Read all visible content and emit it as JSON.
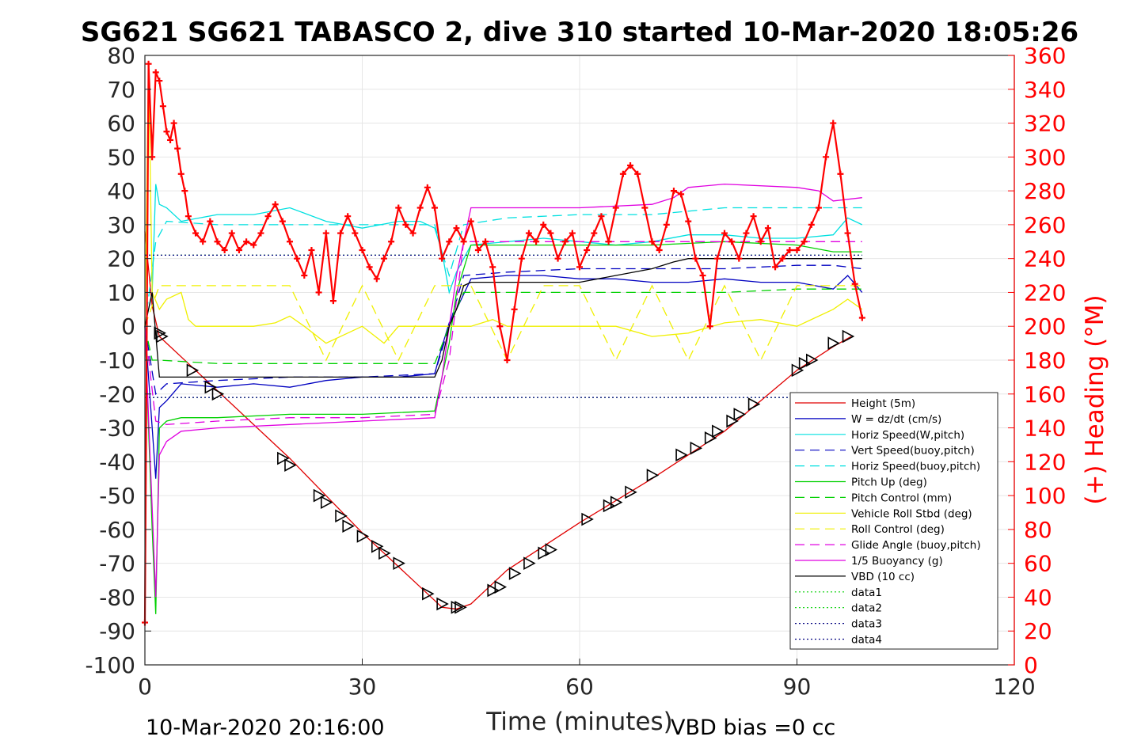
{
  "chart_data": {
    "type": "line",
    "title": "SG621 SG621 TABASCO 2, dive 310 started 10-Mar-2020 18:05:26",
    "xlabel": "Time (minutes)",
    "ylabel_right": "(+) Heading (°M)",
    "xlim": [
      0,
      120
    ],
    "ylim_left": [
      -100,
      80
    ],
    "ylim_right": [
      0,
      360
    ],
    "xticks": [
      "0",
      "30",
      "60",
      "90",
      "120"
    ],
    "yticks_left": [
      "80",
      "70",
      "60",
      "50",
      "40",
      "30",
      "20",
      "10",
      "0",
      "-10",
      "-20",
      "-30",
      "-40",
      "-50",
      "-60",
      "-70",
      "-80",
      "-90",
      "-100"
    ],
    "yticks_right": [
      "360",
      "340",
      "320",
      "300",
      "280",
      "260",
      "240",
      "220",
      "200",
      "180",
      "160",
      "140",
      "120",
      "100",
      "80",
      "60",
      "40",
      "20",
      "0"
    ],
    "grid": true,
    "legend_position": "lower-right",
    "footer_left": "10-Mar-2020 20:16:00",
    "footer_right": "VBD bias =0 cc",
    "colors": {
      "red": "#e00000",
      "blue": "#0000c0",
      "cyan": "#00e0e0",
      "green": "#00d000",
      "yellow": "#f0f000",
      "magenta": "#e000e0",
      "black": "#000000",
      "heading": "#ff0000"
    },
    "legend": [
      {
        "label": "Height (5m)",
        "color": "#e00000",
        "dash": "solid"
      },
      {
        "label": "W = dz/dt (cm/s)",
        "color": "#0000c0",
        "dash": "solid"
      },
      {
        "label": "Horiz Speed(W,pitch)",
        "color": "#00e0e0",
        "dash": "solid"
      },
      {
        "label": "Vert Speed(buoy,pitch)",
        "color": "#0000c0",
        "dash": "dashed"
      },
      {
        "label": "Horiz Speed(buoy,pitch)",
        "color": "#00e0e0",
        "dash": "dashed"
      },
      {
        "label": "Pitch Up (deg)",
        "color": "#00d000",
        "dash": "solid"
      },
      {
        "label": "Pitch Control (mm)",
        "color": "#00d000",
        "dash": "dashed"
      },
      {
        "label": "Vehicle Roll Stbd (deg)",
        "color": "#f0f000",
        "dash": "solid"
      },
      {
        "label": "Roll Control (deg)",
        "color": "#f0f000",
        "dash": "dashed"
      },
      {
        "label": "Glide Angle (buoy,pitch)",
        "color": "#e000e0",
        "dash": "dashed"
      },
      {
        "label": "1/5 Buoyancy (g)",
        "color": "#e000e0",
        "dash": "solid"
      },
      {
        "label": "VBD (10 cc)",
        "color": "#000000",
        "dash": "solid"
      },
      {
        "label": "data1",
        "color": "#00d000",
        "dash": "dotted"
      },
      {
        "label": "data2",
        "color": "#00d000",
        "dash": "dotted"
      },
      {
        "label": "data3",
        "color": "#000080",
        "dash": "dotted"
      },
      {
        "label": "data4",
        "color": "#000080",
        "dash": "dotted"
      }
    ],
    "series": [
      {
        "name": "Height (5m)",
        "axis": "left",
        "color": "#e00000",
        "dash": "solid",
        "x": [
          0,
          1,
          2,
          6,
          10,
          20,
          30,
          40,
          41,
          43,
          45,
          50,
          60,
          70,
          80,
          90,
          95,
          97.5
        ],
        "y": [
          28,
          6,
          -3,
          -11,
          -19,
          -39,
          -61,
          -81,
          -83,
          -83.5,
          -82,
          -72,
          -58,
          -45,
          -31,
          -13,
          -6,
          -3
        ]
      },
      {
        "name": "W = dz/dt (cm/s)",
        "axis": "left",
        "color": "#0000c0",
        "dash": "solid",
        "x": [
          0,
          1,
          1.5,
          2,
          3,
          5,
          10,
          15,
          20,
          25,
          30,
          35,
          40,
          41,
          42,
          43,
          45,
          50,
          55,
          60,
          65,
          70,
          75,
          80,
          85,
          90,
          95,
          97,
          99
        ],
        "y": [
          0,
          -30,
          -45,
          -24,
          -22,
          -17,
          -18,
          -17,
          -18,
          -16,
          -15,
          -15,
          -14,
          -6,
          1,
          5,
          14,
          15,
          15,
          14,
          14,
          13,
          13,
          14,
          13,
          13,
          11,
          15,
          10
        ]
      },
      {
        "name": "Horiz Speed(W,pitch)",
        "axis": "left",
        "color": "#00e0e0",
        "dash": "solid",
        "x": [
          0,
          1,
          1.5,
          2,
          3,
          5,
          10,
          15,
          20,
          25,
          30,
          35,
          38,
          40,
          41,
          42,
          43,
          45,
          50,
          55,
          60,
          65,
          70,
          75,
          80,
          85,
          90,
          95,
          97,
          99
        ],
        "y": [
          0,
          10,
          42,
          36,
          35,
          31,
          33,
          33,
          35,
          31,
          29,
          31,
          31,
          29,
          22,
          10,
          16,
          24,
          25,
          26,
          25,
          24,
          25,
          27,
          27,
          26,
          26,
          27,
          32,
          30
        ]
      },
      {
        "name": "Vert Speed(buoy,pitch)",
        "axis": "left",
        "color": "#0000c0",
        "dash": "dashed",
        "x": [
          0,
          1.5,
          3,
          10,
          20,
          30,
          40,
          42,
          44,
          50,
          60,
          70,
          80,
          90,
          95,
          99
        ],
        "y": [
          0,
          -20,
          -17,
          -16,
          -15,
          -15,
          -14,
          0,
          15,
          16,
          17,
          17,
          17,
          18,
          18,
          17
        ]
      },
      {
        "name": "Horiz Speed(buoy,pitch)",
        "axis": "left",
        "color": "#00e0e0",
        "dash": "dashed",
        "x": [
          0,
          1.5,
          3,
          10,
          20,
          30,
          40,
          41,
          42,
          44,
          50,
          60,
          70,
          80,
          90,
          95,
          99
        ],
        "y": [
          0,
          25,
          31,
          30,
          30,
          30,
          30,
          22,
          15,
          30,
          32,
          33,
          33,
          35,
          35,
          35,
          35
        ]
      },
      {
        "name": "Pitch Up (deg)",
        "axis": "left",
        "color": "#00d000",
        "dash": "solid",
        "x": [
          0,
          1,
          1.5,
          2,
          3,
          5,
          10,
          20,
          30,
          40,
          41,
          42,
          43,
          45,
          50,
          60,
          70,
          80,
          90,
          95,
          99
        ],
        "y": [
          0,
          -60,
          -85,
          -30,
          -28,
          -27,
          -27,
          -26,
          -26,
          -25,
          -15,
          -5,
          10,
          24,
          24,
          24,
          24,
          25,
          24,
          22,
          22
        ]
      },
      {
        "name": "Pitch Control (mm)",
        "axis": "left",
        "color": "#00d000",
        "dash": "dashed",
        "x": [
          0,
          1,
          2,
          10,
          20,
          30,
          40,
          42,
          44,
          50,
          60,
          70,
          80,
          90,
          95,
          99
        ],
        "y": [
          0,
          -10,
          -10,
          -11,
          -11,
          -11,
          -11,
          0,
          10,
          10,
          10,
          10,
          10,
          11,
          11,
          11
        ]
      },
      {
        "name": "Vehicle Roll Stbd (deg)",
        "axis": "left",
        "color": "#f0f000",
        "dash": "solid",
        "x": [
          0,
          0.5,
          1,
          2,
          3,
          5,
          6,
          7,
          10,
          15,
          18,
          20,
          22,
          25,
          30,
          33,
          35,
          40,
          45,
          48,
          50,
          55,
          60,
          65,
          70,
          75,
          80,
          85,
          90,
          95,
          97,
          99
        ],
        "y": [
          0,
          78,
          10,
          5,
          8,
          10,
          2,
          0,
          0,
          0,
          1,
          3,
          0,
          -5,
          0,
          -5,
          0,
          0,
          0,
          2,
          0,
          0,
          0,
          0,
          -3,
          -2,
          1,
          2,
          0,
          5,
          8,
          5
        ]
      },
      {
        "name": "Roll Control (deg)",
        "axis": "left",
        "color": "#f0f000",
        "dash": "dashed",
        "x": [
          0,
          2,
          5,
          10,
          20,
          25,
          30,
          35,
          40,
          45,
          50,
          55,
          60,
          65,
          70,
          75,
          80,
          85,
          90,
          95,
          99
        ],
        "y": [
          0,
          12,
          12,
          12,
          12,
          -10,
          12,
          -10,
          12,
          12,
          -10,
          12,
          12,
          -10,
          12,
          -10,
          12,
          -10,
          12,
          12,
          12
        ]
      },
      {
        "name": "Glide Angle (buoy,pitch)",
        "axis": "left",
        "color": "#e000e0",
        "dash": "dashed",
        "x": [
          0,
          1.5,
          3,
          10,
          20,
          30,
          40,
          42,
          44,
          50,
          60,
          70,
          80,
          90,
          95,
          99
        ],
        "y": [
          0,
          -28,
          -29,
          -28,
          -27,
          -27,
          -26,
          -10,
          25,
          25,
          25,
          25,
          25,
          25,
          25,
          25
        ]
      },
      {
        "name": "1/5 Buoyancy (g)",
        "axis": "left",
        "color": "#e000e0",
        "dash": "solid",
        "x": [
          0,
          1.5,
          2,
          3,
          5,
          10,
          20,
          30,
          40,
          41,
          43,
          45,
          50,
          60,
          70,
          73,
          75,
          80,
          90,
          93,
          95,
          99
        ],
        "y": [
          0,
          -80,
          -38,
          -34,
          -31,
          -30,
          -29,
          -28,
          -27,
          -15,
          15,
          35,
          35,
          35,
          36,
          38,
          41,
          42,
          41,
          40,
          37,
          38
        ]
      },
      {
        "name": "VBD (10 cc)",
        "axis": "left",
        "color": "#000000",
        "dash": "solid",
        "x": [
          0,
          1,
          2,
          10,
          20,
          30,
          40,
          41,
          42,
          43,
          44,
          45,
          50,
          60,
          70,
          73,
          75,
          80,
          90,
          95,
          99
        ],
        "y": [
          0,
          10,
          -15,
          -15,
          -15,
          -15,
          -15,
          -10,
          0,
          5,
          12,
          13,
          13,
          13,
          17,
          19,
          20,
          20,
          20,
          20,
          20
        ]
      },
      {
        "name": "data1",
        "axis": "left",
        "color": "#00d000",
        "dash": "dotted",
        "x": [
          0,
          99
        ],
        "y": [
          21,
          21
        ]
      },
      {
        "name": "data2",
        "axis": "left",
        "color": "#00d000",
        "dash": "dotted",
        "x": [
          0,
          99
        ],
        "y": [
          -21,
          -21
        ]
      },
      {
        "name": "data3",
        "axis": "left",
        "color": "#000080",
        "dash": "dotted",
        "x": [
          0,
          99
        ],
        "y": [
          21,
          21
        ]
      },
      {
        "name": "data4",
        "axis": "left",
        "color": "#000080",
        "dash": "dotted",
        "x": [
          0,
          99
        ],
        "y": [
          -21,
          -21
        ]
      }
    ],
    "gps_markers": {
      "x": [
        2,
        2.3,
        6.5,
        9,
        10,
        19,
        20,
        24,
        25,
        27,
        28,
        30,
        32,
        33,
        35,
        39,
        41,
        43,
        43.5,
        48,
        49,
        51,
        53,
        55,
        56,
        61,
        64,
        65,
        67,
        70,
        74,
        76,
        78,
        79,
        81,
        82,
        84,
        90,
        91,
        92,
        95,
        97
      ],
      "y": [
        -2,
        -3,
        -13,
        -18,
        -20,
        -39,
        -41,
        -50,
        -52,
        -56,
        -59,
        -62,
        -65,
        -67,
        -70,
        -79,
        -82,
        -83,
        -83,
        -78,
        -77,
        -73,
        -70,
        -67,
        -66,
        -57,
        -53,
        -52,
        -49,
        -44,
        -38,
        -36,
        -33,
        -31,
        -28,
        -26,
        -23,
        -13,
        -11,
        -10,
        -5,
        -3
      ]
    },
    "heading": {
      "axis": "right",
      "color": "#ff0000",
      "marker": "+",
      "x": [
        0,
        0.5,
        1,
        1.5,
        2,
        2.5,
        3,
        3.5,
        4,
        4.5,
        5,
        5.5,
        6,
        7,
        8,
        9,
        10,
        11,
        12,
        13,
        14,
        15,
        16,
        17,
        18,
        19,
        20,
        21,
        22,
        23,
        24,
        25,
        26,
        27,
        28,
        29,
        30,
        31,
        32,
        33,
        34,
        35,
        36,
        37,
        38,
        39,
        40,
        41,
        42,
        43,
        44,
        45,
        46,
        47,
        48,
        49,
        50,
        51,
        52,
        53,
        54,
        55,
        56,
        57,
        58,
        59,
        60,
        61,
        62,
        63,
        64,
        65,
        66,
        67,
        68,
        69,
        70,
        71,
        72,
        73,
        74,
        75,
        76,
        77,
        78,
        79,
        80,
        81,
        82,
        83,
        84,
        85,
        86,
        87,
        88,
        89,
        90,
        91,
        92,
        93,
        94,
        95,
        96,
        97,
        98,
        99
      ],
      "y": [
        25,
        355,
        300,
        350,
        345,
        330,
        315,
        310,
        320,
        305,
        290,
        280,
        265,
        255,
        250,
        262,
        250,
        245,
        255,
        245,
        250,
        248,
        255,
        265,
        272,
        262,
        250,
        240,
        230,
        245,
        220,
        255,
        215,
        255,
        265,
        255,
        245,
        235,
        228,
        240,
        250,
        270,
        260,
        255,
        270,
        282,
        270,
        240,
        250,
        258,
        250,
        262,
        245,
        250,
        235,
        200,
        180,
        210,
        240,
        255,
        250,
        260,
        255,
        240,
        250,
        255,
        235,
        245,
        255,
        265,
        250,
        270,
        290,
        295,
        290,
        270,
        250,
        245,
        260,
        280,
        278,
        262,
        240,
        230,
        200,
        240,
        255,
        250,
        240,
        255,
        265,
        250,
        258,
        235,
        240,
        245,
        245,
        250,
        260,
        270,
        300,
        320,
        290,
        255,
        225,
        205
      ]
    }
  }
}
